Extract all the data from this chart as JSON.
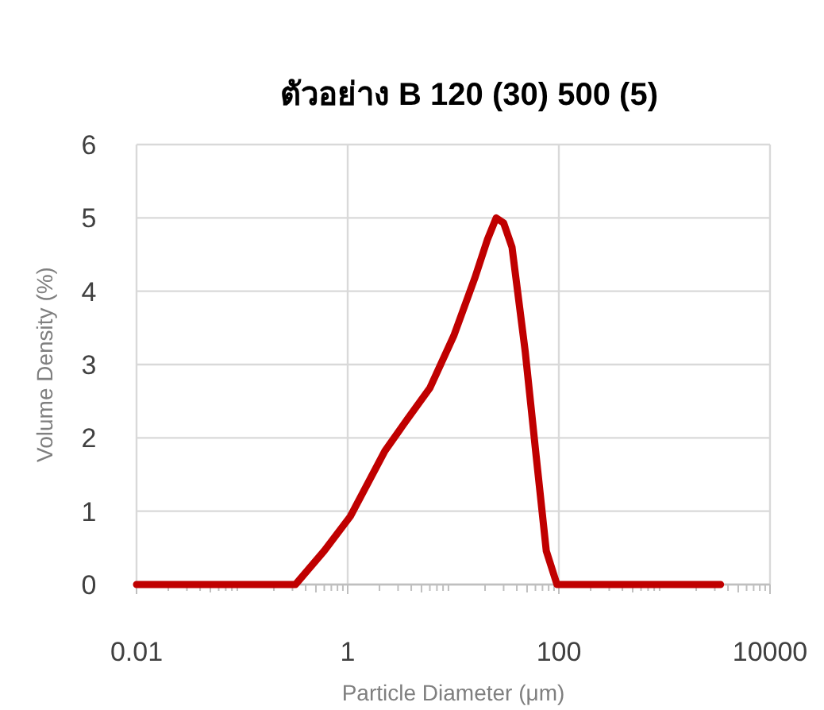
{
  "chart_data": {
    "type": "line",
    "title": "ตัวอย่าง B 120 (30) 500 (5)",
    "xlabel": "Particle Diameter (μm)",
    "ylabel": "Volume Density (%)",
    "x": [
      0.01,
      0.32,
      0.6,
      1.06,
      2.25,
      3.37,
      6,
      10.1,
      16,
      21,
      25.5,
      30,
      36,
      48,
      61,
      76,
      96,
      3400
    ],
    "values": [
      0,
      0,
      0.46,
      0.93,
      1.82,
      2.18,
      2.68,
      3.39,
      4.18,
      4.7,
      5.0,
      4.93,
      4.6,
      3.18,
      1.75,
      0.46,
      0,
      0
    ],
    "color": "#c00000",
    "xlim": [
      0.01,
      10000
    ],
    "ylim": [
      0,
      6
    ],
    "xticks": [
      0.01,
      1,
      100,
      10000
    ],
    "yticks": [
      0,
      1,
      2,
      3,
      4,
      5,
      6
    ],
    "log": "x",
    "grid": true
  }
}
